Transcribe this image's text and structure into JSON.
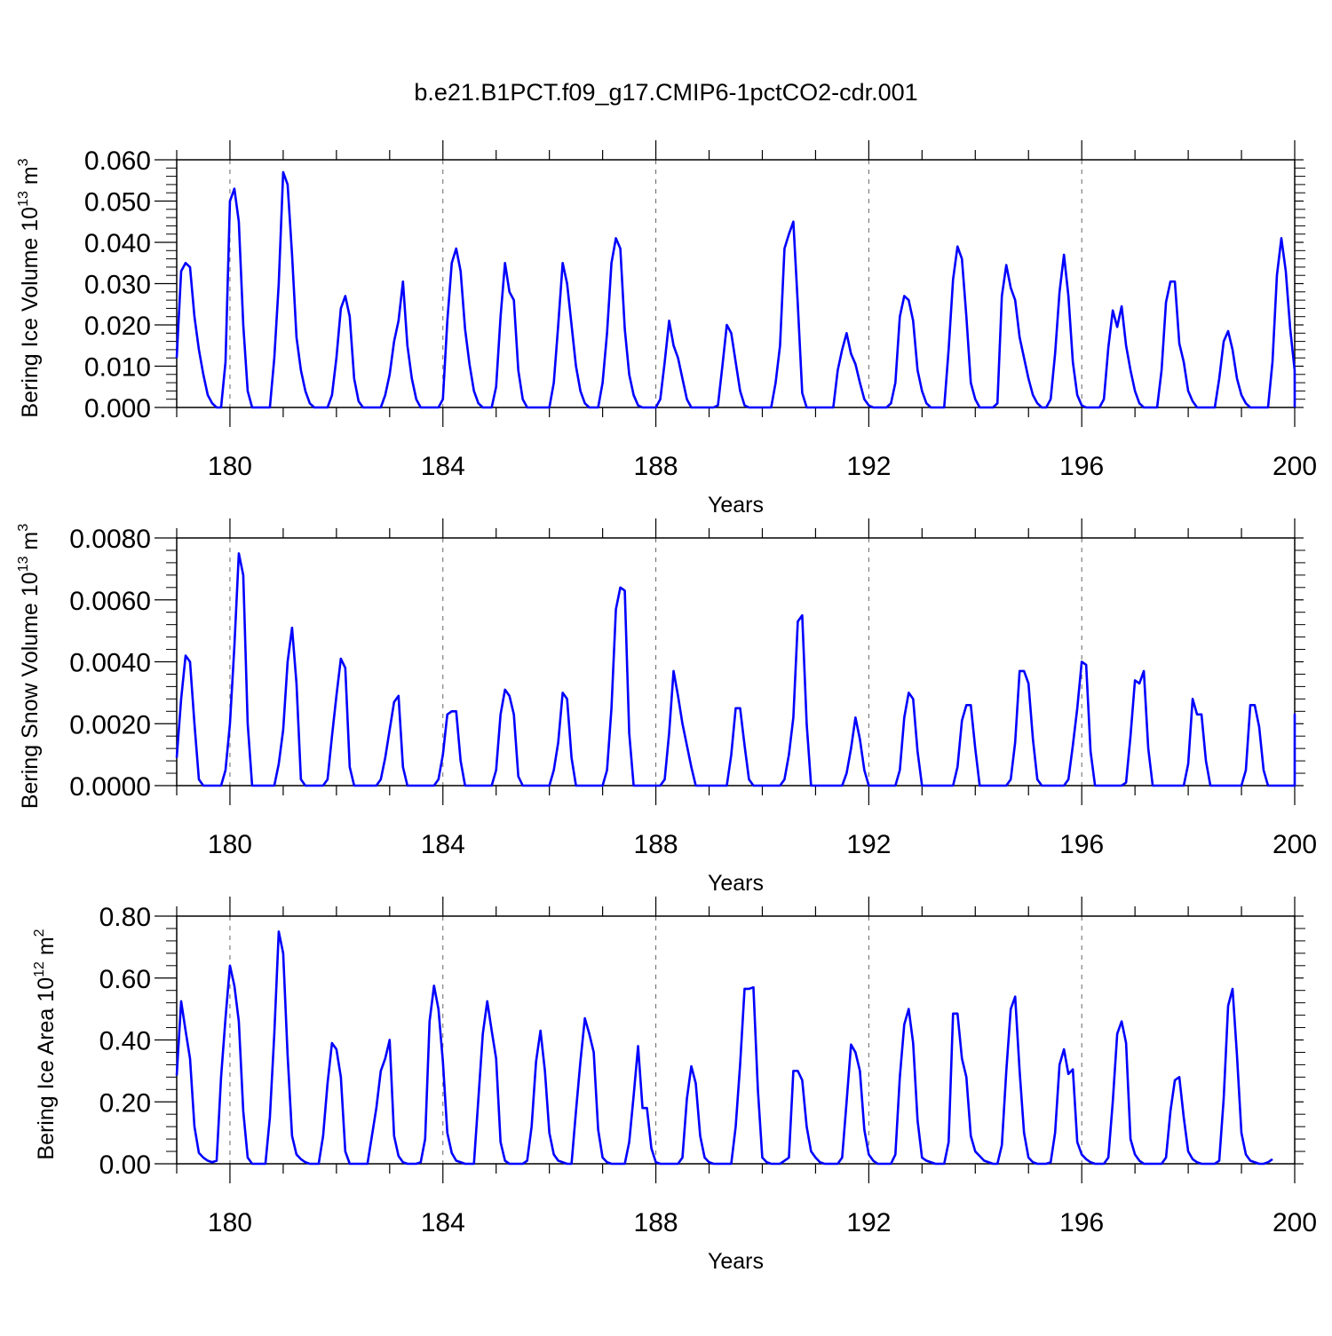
{
  "title": "b.e21.B1PCT.f09_g17.CMIP6-1pctCO2-cdr.001",
  "colors": {
    "line": "#0000ff",
    "axis": "#000000",
    "gridline": "#000000"
  },
  "chart_data": [
    {
      "type": "line",
      "ylabel": {
        "prefix": "Bering Ice Volume 10",
        "exponent": "13",
        "unit": " m",
        "unit_exponent": "3"
      },
      "xlabel": "Years",
      "xlim": [
        179.0,
        200.0
      ],
      "ylim": [
        0.0,
        0.06
      ],
      "xticks": [
        180,
        184,
        188,
        192,
        196,
        200
      ],
      "xtick_labels": [
        "180",
        "184",
        "188",
        "192",
        "196",
        "200"
      ],
      "yticks": [
        0.0,
        0.01,
        0.02,
        0.03,
        0.04,
        0.05,
        0.06
      ],
      "ytick_labels": [
        "0.000",
        "0.010",
        "0.020",
        "0.030",
        "0.040",
        "0.050",
        "0.060"
      ],
      "vertical_dashed_lines": [
        180,
        184,
        188,
        192,
        196
      ],
      "series": [
        {
          "x_start": 179.0,
          "x_step": 0.08333,
          "values": [
            0.012,
            0.033,
            0.035,
            0.034,
            0.022,
            0.014,
            0.008,
            0.003,
            0.001,
            0.0,
            0.0,
            0.011,
            0.05,
            0.053,
            0.045,
            0.02,
            0.004,
            0.0,
            0.0,
            0.0,
            0.0,
            0.0,
            0.012,
            0.03,
            0.057,
            0.054,
            0.037,
            0.017,
            0.009,
            0.004,
            0.001,
            0.0,
            0.0,
            0.0,
            0.0,
            0.003,
            0.012,
            0.024,
            0.027,
            0.022,
            0.007,
            0.0015,
            0.0,
            0.0,
            0.0,
            0.0,
            0.0,
            0.003,
            0.008,
            0.016,
            0.021,
            0.0305,
            0.015,
            0.007,
            0.002,
            0.0,
            0.0,
            0.0,
            0.0,
            0.0,
            0.002,
            0.021,
            0.035,
            0.0385,
            0.033,
            0.019,
            0.0105,
            0.004,
            0.001,
            0.0,
            0.0,
            0.0,
            0.005,
            0.022,
            0.035,
            0.028,
            0.026,
            0.009,
            0.002,
            0.0,
            0.0,
            0.0,
            0.0,
            0.0,
            0.0,
            0.006,
            0.02,
            0.035,
            0.03,
            0.02,
            0.01,
            0.004,
            0.001,
            0.0,
            0.0,
            0.0,
            0.006,
            0.018,
            0.035,
            0.041,
            0.0385,
            0.019,
            0.008,
            0.003,
            0.0005,
            0.0,
            0.0,
            0.0,
            0.0,
            0.002,
            0.011,
            0.021,
            0.015,
            0.012,
            0.007,
            0.002,
            0.0,
            0.0,
            0.0,
            0.0,
            0.0,
            0.0,
            0.0005,
            0.01,
            0.02,
            0.018,
            0.011,
            0.004,
            0.0005,
            0.0,
            0.0,
            0.0,
            0.0,
            0.0,
            0.0,
            0.006,
            0.015,
            0.0385,
            0.042,
            0.045,
            0.025,
            0.0035,
            0.0,
            0.0,
            0.0,
            0.0,
            0.0,
            0.0,
            0.0,
            0.009,
            0.014,
            0.018,
            0.013,
            0.0105,
            0.006,
            0.002,
            0.0005,
            0.0,
            0.0,
            0.0,
            0.0,
            0.001,
            0.006,
            0.022,
            0.027,
            0.026,
            0.021,
            0.009,
            0.004,
            0.001,
            0.0,
            0.0,
            0.0,
            0.0,
            0.014,
            0.031,
            0.039,
            0.036,
            0.022,
            0.006,
            0.002,
            0.0,
            0.0,
            0.0,
            0.0,
            0.001,
            0.027,
            0.0345,
            0.029,
            0.026,
            0.017,
            0.012,
            0.007,
            0.003,
            0.001,
            0.0,
            0.0,
            0.002,
            0.013,
            0.028,
            0.037,
            0.027,
            0.011,
            0.003,
            0.0005,
            0.0,
            0.0,
            0.0,
            0.0,
            0.002,
            0.0145,
            0.0235,
            0.0195,
            0.0245,
            0.015,
            0.009,
            0.004,
            0.001,
            0.0,
            0.0,
            0.0,
            0.0,
            0.009,
            0.0255,
            0.0305,
            0.0305,
            0.0155,
            0.011,
            0.004,
            0.0015,
            0.0,
            0.0,
            0.0,
            0.0,
            0.0,
            0.007,
            0.016,
            0.0185,
            0.014,
            0.007,
            0.003,
            0.001,
            0.0,
            0.0,
            0.0,
            0.0,
            0.0,
            0.011,
            0.032,
            0.041,
            0.033,
            0.019,
            0.009,
            0.003,
            0.0,
            0.0,
            0.0,
            0.0
          ]
        }
      ]
    },
    {
      "type": "line",
      "ylabel": {
        "prefix": "Bering Snow Volume 10",
        "exponent": "13",
        "unit": " m",
        "unit_exponent": "3"
      },
      "xlabel": "Years",
      "xlim": [
        179.0,
        200.0
      ],
      "ylim": [
        0.0,
        0.008
      ],
      "xticks": [
        180,
        184,
        188,
        192,
        196,
        200
      ],
      "xtick_labels": [
        "180",
        "184",
        "188",
        "192",
        "196",
        "200"
      ],
      "yticks": [
        0.0,
        0.002,
        0.004,
        0.006,
        0.008
      ],
      "ytick_labels": [
        "0.0000",
        "0.0020",
        "0.0040",
        "0.0060",
        "0.0080"
      ],
      "vertical_dashed_lines": [
        180,
        184,
        188,
        192,
        196
      ],
      "series": [
        {
          "x_start": 179.0,
          "x_step": 0.08333,
          "values": [
            0.0009,
            0.0028,
            0.0042,
            0.004,
            0.002,
            0.0002,
            0.0,
            0.0,
            0.0,
            0.0,
            0.0,
            0.0005,
            0.002,
            0.0045,
            0.0075,
            0.0068,
            0.002,
            0.0,
            0.0,
            0.0,
            0.0,
            0.0,
            0.0,
            0.0007,
            0.0018,
            0.004,
            0.0051,
            0.0033,
            0.0002,
            0.0,
            0.0,
            0.0,
            0.0,
            0.0,
            0.0002,
            0.0016,
            0.0029,
            0.0041,
            0.0038,
            0.0006,
            0.0,
            0.0,
            0.0,
            0.0,
            0.0,
            0.0,
            0.0002,
            0.0009,
            0.0018,
            0.0027,
            0.0029,
            0.0006,
            0.0,
            0.0,
            0.0,
            0.0,
            0.0,
            0.0,
            0.0,
            0.0002,
            0.001,
            0.0023,
            0.0024,
            0.0024,
            0.0008,
            0.0,
            0.0,
            0.0,
            0.0,
            0.0,
            0.0,
            0.0,
            0.0005,
            0.0023,
            0.0031,
            0.0029,
            0.0023,
            0.0003,
            0.0,
            0.0,
            0.0,
            0.0,
            0.0,
            0.0,
            0.0,
            0.0005,
            0.0014,
            0.003,
            0.0028,
            0.0009,
            0.0,
            0.0,
            0.0,
            0.0,
            0.0,
            0.0,
            0.0,
            0.0005,
            0.0025,
            0.0057,
            0.0064,
            0.0063,
            0.0017,
            0.0,
            0.0,
            0.0,
            0.0,
            0.0,
            0.0,
            0.0,
            0.0002,
            0.0017,
            0.0037,
            0.0029,
            0.002,
            0.0013,
            0.0006,
            0.0,
            0.0,
            0.0,
            0.0,
            0.0,
            0.0,
            0.0,
            0.0,
            0.001,
            0.0025,
            0.0025,
            0.0013,
            0.0002,
            0.0,
            0.0,
            0.0,
            0.0,
            0.0,
            0.0,
            0.0,
            0.0002,
            0.001,
            0.0022,
            0.0053,
            0.0055,
            0.002,
            0.0,
            0.0,
            0.0,
            0.0,
            0.0,
            0.0,
            0.0,
            0.0,
            0.0004,
            0.0012,
            0.0022,
            0.0015,
            0.0005,
            0.0,
            0.0,
            0.0,
            0.0,
            0.0,
            0.0,
            0.0,
            0.0005,
            0.0022,
            0.003,
            0.0028,
            0.0011,
            0.0,
            0.0,
            0.0,
            0.0,
            0.0,
            0.0,
            0.0,
            0.0,
            0.0006,
            0.0021,
            0.0026,
            0.0026,
            0.0012,
            0.0,
            0.0,
            0.0,
            0.0,
            0.0,
            0.0,
            0.0,
            0.0002,
            0.0014,
            0.0037,
            0.0037,
            0.0033,
            0.0015,
            0.0002,
            0.0,
            0.0,
            0.0,
            0.0,
            0.0,
            0.0,
            0.0002,
            0.0013,
            0.0025,
            0.004,
            0.0039,
            0.0011,
            0.0,
            0.0,
            0.0,
            0.0,
            0.0,
            0.0,
            0.0,
            0.0001,
            0.0016,
            0.0034,
            0.0033,
            0.0037,
            0.0012,
            0.0,
            0.0,
            0.0,
            0.0,
            0.0,
            0.0,
            0.0,
            0.0,
            0.0007,
            0.0028,
            0.0023,
            0.0023,
            0.0008,
            0.0,
            0.0,
            0.0,
            0.0,
            0.0,
            0.0,
            0.0,
            0.0,
            0.0005,
            0.0026,
            0.0026,
            0.0019,
            0.0005,
            0.0,
            0.0,
            0.0,
            0.0,
            0.0,
            0.0,
            0.0,
            0.0,
            0.0006,
            0.0019,
            0.0023,
            0.002,
            0.0005,
            0.0,
            0.0,
            0.0,
            0.0,
            0.0,
            0.0,
            0.0
          ]
        }
      ]
    },
    {
      "type": "line",
      "ylabel": {
        "prefix": "Bering Ice Area 10",
        "exponent": "12",
        "unit": " m",
        "unit_exponent": "2"
      },
      "xlabel": "Years",
      "xlim": [
        179.0,
        200.0
      ],
      "ylim": [
        0.0,
        0.8
      ],
      "xticks": [
        180,
        184,
        188,
        192,
        196,
        200
      ],
      "xtick_labels": [
        "180",
        "184",
        "188",
        "192",
        "196",
        "200"
      ],
      "yticks": [
        0.0,
        0.2,
        0.4,
        0.6,
        0.8
      ],
      "ytick_labels": [
        "0.00",
        "0.20",
        "0.40",
        "0.60",
        "0.80"
      ],
      "vertical_dashed_lines": [
        180,
        184,
        188,
        192,
        196
      ],
      "series": [
        {
          "x_start": 179.0,
          "x_step": 0.08333,
          "values": [
            0.285,
            0.525,
            0.43,
            0.34,
            0.12,
            0.035,
            0.02,
            0.01,
            0.005,
            0.01,
            0.28,
            0.47,
            0.64,
            0.575,
            0.46,
            0.17,
            0.02,
            0.0,
            0.0,
            0.0,
            0.0,
            0.15,
            0.42,
            0.75,
            0.68,
            0.35,
            0.09,
            0.03,
            0.015,
            0.005,
            0.0,
            0.0,
            0.0,
            0.09,
            0.26,
            0.39,
            0.37,
            0.28,
            0.04,
            0.0,
            0.0,
            0.0,
            0.0,
            0.0,
            0.09,
            0.18,
            0.3,
            0.34,
            0.4,
            0.09,
            0.025,
            0.005,
            0.0,
            0.0,
            0.0,
            0.005,
            0.08,
            0.46,
            0.575,
            0.5,
            0.33,
            0.1,
            0.035,
            0.01,
            0.005,
            0.0,
            0.0,
            0.0,
            0.21,
            0.42,
            0.525,
            0.43,
            0.34,
            0.07,
            0.01,
            0.0,
            0.0,
            0.0,
            0.0,
            0.01,
            0.12,
            0.33,
            0.43,
            0.3,
            0.1,
            0.03,
            0.01,
            0.005,
            0.0,
            0.0,
            0.17,
            0.33,
            0.47,
            0.42,
            0.36,
            0.11,
            0.02,
            0.005,
            0.0,
            0.0,
            0.0,
            0.0,
            0.07,
            0.22,
            0.38,
            0.18,
            0.18,
            0.05,
            0.005,
            0.0,
            0.0,
            0.0,
            0.0,
            0.0,
            0.02,
            0.21,
            0.315,
            0.26,
            0.09,
            0.02,
            0.005,
            0.0,
            0.0,
            0.0,
            0.0,
            0.0,
            0.12,
            0.32,
            0.565,
            0.565,
            0.57,
            0.24,
            0.02,
            0.005,
            0.0,
            0.0,
            0.0,
            0.01,
            0.02,
            0.3,
            0.3,
            0.27,
            0.12,
            0.04,
            0.02,
            0.005,
            0.0,
            0.0,
            0.0,
            0.0,
            0.02,
            0.2,
            0.385,
            0.36,
            0.3,
            0.11,
            0.03,
            0.01,
            0.0,
            0.0,
            0.0,
            0.0,
            0.03,
            0.28,
            0.45,
            0.5,
            0.39,
            0.14,
            0.02,
            0.01,
            0.005,
            0.0,
            0.0,
            0.0,
            0.07,
            0.485,
            0.485,
            0.34,
            0.28,
            0.09,
            0.04,
            0.025,
            0.01,
            0.005,
            0.0,
            0.0,
            0.06,
            0.3,
            0.5,
            0.54,
            0.3,
            0.1,
            0.02,
            0.005,
            0.0,
            0.0,
            0.0,
            0.005,
            0.1,
            0.32,
            0.37,
            0.29,
            0.305,
            0.07,
            0.03,
            0.015,
            0.005,
            0.0,
            0.0,
            0.0,
            0.02,
            0.2,
            0.42,
            0.46,
            0.39,
            0.08,
            0.03,
            0.01,
            0.0,
            0.0,
            0.0,
            0.0,
            0.0,
            0.02,
            0.17,
            0.27,
            0.28,
            0.15,
            0.04,
            0.015,
            0.005,
            0.0,
            0.0,
            0.0,
            0.0,
            0.01,
            0.21,
            0.51,
            0.565,
            0.35,
            0.1,
            0.03,
            0.01,
            0.005,
            0.0,
            0.0,
            0.005,
            0.015
          ]
        }
      ]
    }
  ]
}
